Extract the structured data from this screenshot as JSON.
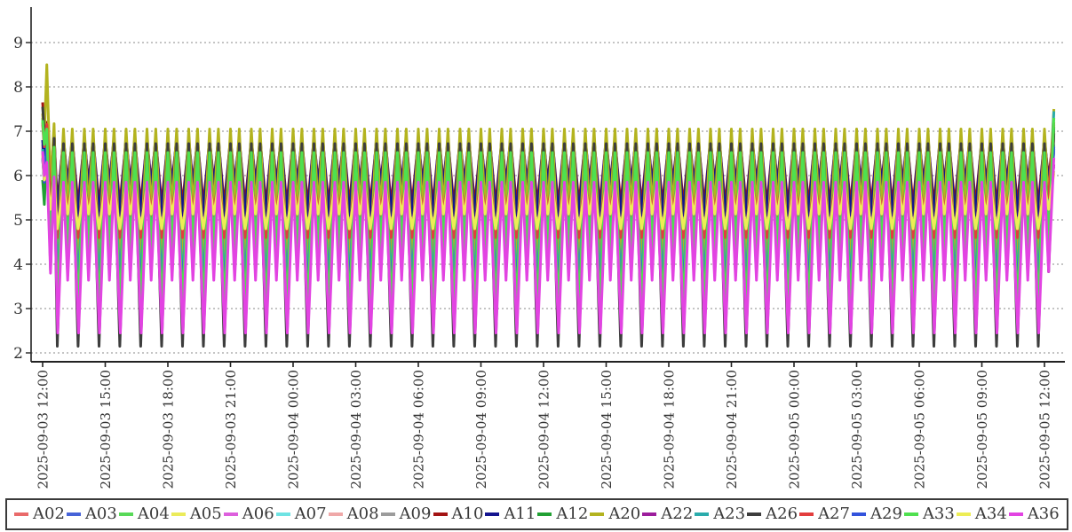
{
  "chart_data": {
    "type": "line",
    "title": "",
    "xlabel": "",
    "ylabel": "",
    "grid": "horizontal-dashed",
    "legend_position": "bottom",
    "y_axis": {
      "min": 2,
      "max": 9,
      "ticks": [
        2,
        3,
        4,
        5,
        6,
        7,
        8,
        9
      ]
    },
    "x_axis": {
      "tick_hours": [
        0,
        3,
        6,
        9,
        12,
        15,
        18,
        21,
        24,
        27,
        30,
        33,
        36,
        39,
        42,
        45,
        48
      ],
      "tick_labels": [
        "2025-09-03 12:00",
        "2025-09-03 15:00",
        "2025-09-03 18:00",
        "2025-09-03 21:00",
        "2025-09-04 00:00",
        "2025-09-04 03:00",
        "2025-09-04 06:00",
        "2025-09-04 09:00",
        "2025-09-04 12:00",
        "2025-09-04 15:00",
        "2025-09-04 18:00",
        "2025-09-04 21:00",
        "2025-09-05 00:00",
        "2025-09-05 03:00",
        "2025-09-05 06:00",
        "2025-09-05 09:00",
        "2025-09-05 12:00"
      ]
    },
    "waveform": {
      "description": "all series repeat an hourly M-shaped cycle: deep trough, peak, shallow notch, peak, deep trough",
      "period_hours": 1,
      "first_trough_hour": 0.7,
      "peak_dt": 0.3,
      "mid_dt": 0.5,
      "peak2_dt": 0.72,
      "mid_w": 0.35,
      "pre": {
        "dip_t": 0.08,
        "dip_drop": 0.55,
        "spike_t": 0.2,
        "mid_t": 0.38,
        "peak2_t": 0.55,
        "peak2_lift": 0.12
      },
      "end": {
        "trough_t": 47.7,
        "peak_t": 48.0,
        "mid_t": 48.2,
        "end_t": 48.45
      }
    },
    "series": [
      {
        "name": "A02",
        "color": "#e96a6a",
        "min": 4.55,
        "max": 5.95,
        "start": 7.15,
        "spike": 7.1,
        "end": 6.55,
        "phase_offset": 0
      },
      {
        "name": "A03",
        "color": "#4663d8",
        "min": 3.4,
        "max": 6.1,
        "start": 6.45,
        "spike": 6.55,
        "end": 6.6,
        "phase_offset": 0
      },
      {
        "name": "A04",
        "color": "#58d958",
        "min": 2.95,
        "max": 6.45,
        "start": 7.3,
        "spike": 7.0,
        "end": 7.15,
        "phase_offset": 0
      },
      {
        "name": "A05",
        "color": "#ebeb5a",
        "min": 4.85,
        "max": 5.7,
        "start": 6.5,
        "spike": 6.1,
        "end": 6.1,
        "phase_offset": 0
      },
      {
        "name": "A06",
        "color": "#dd5fdd",
        "min": 4.95,
        "max": 5.8,
        "start": 6.55,
        "spike": 6.2,
        "end": 6.2,
        "phase_offset": 0
      },
      {
        "name": "A07",
        "color": "#6fe3e3",
        "min": 3.7,
        "max": 6.18,
        "start": 6.6,
        "spike": 6.6,
        "end": 6.7,
        "phase_offset": 0
      },
      {
        "name": "A08",
        "color": "#efa8a8",
        "min": 5.05,
        "max": 6.6,
        "start": 6.65,
        "spike": 6.8,
        "end": 6.85,
        "phase_offset": 0
      },
      {
        "name": "A09",
        "color": "#9c9c9c",
        "min": 5.2,
        "max": 6.68,
        "start": 6.7,
        "spike": 6.9,
        "end": 6.9,
        "phase_offset": 0
      },
      {
        "name": "A10",
        "color": "#a31313",
        "min": 5.35,
        "max": 6.8,
        "start": 7.65,
        "spike": 7.2,
        "end": 7.0,
        "phase_offset": 0
      },
      {
        "name": "A11",
        "color": "#14148f",
        "min": 5.1,
        "max": 6.88,
        "start": 6.8,
        "spike": 7.0,
        "end": 7.05,
        "phase_offset": 0
      },
      {
        "name": "A12",
        "color": "#21a033",
        "min": 2.9,
        "max": 6.35,
        "start": 5.9,
        "spike": 6.6,
        "end": 7.1,
        "phase_offset": 0
      },
      {
        "name": "A20",
        "color": "#b3b31f",
        "min": 4.2,
        "max": 7.05,
        "start": 7.4,
        "spike": 8.5,
        "end": 7.5,
        "phase_offset": 0
      },
      {
        "name": "A22",
        "color": "#9c1d9c",
        "min": 4.75,
        "max": 5.88,
        "start": 6.4,
        "spike": 6.25,
        "end": 6.25,
        "phase_offset": -0.02
      },
      {
        "name": "A23",
        "color": "#2aabab",
        "min": 3.6,
        "max": 6.25,
        "start": 6.6,
        "spike": 6.65,
        "end": 7.45,
        "phase_offset": 0
      },
      {
        "name": "A26",
        "color": "#3d3d3d",
        "min": 2.15,
        "max": 6.72,
        "start": 7.55,
        "spike": 7.05,
        "end": 6.95,
        "phase_offset": 0
      },
      {
        "name": "A27",
        "color": "#e33d3d",
        "min": 4.6,
        "max": 6.02,
        "start": 7.2,
        "spike": 7.15,
        "end": 7.2,
        "phase_offset": 0
      },
      {
        "name": "A29",
        "color": "#3353dc",
        "min": 3.35,
        "max": 6.15,
        "start": 6.4,
        "spike": 6.6,
        "end": 6.65,
        "phase_offset": 0
      },
      {
        "name": "A33",
        "color": "#4fe04f",
        "min": 3.0,
        "max": 6.52,
        "start": 7.25,
        "spike": 7.05,
        "end": 7.3,
        "phase_offset": 0
      },
      {
        "name": "A34",
        "color": "#eded55",
        "min": 4.8,
        "max": 5.75,
        "start": 6.45,
        "spike": 6.05,
        "end": 6.05,
        "phase_offset": 0
      },
      {
        "name": "A36",
        "color": "#e243e2",
        "min": 2.45,
        "max": 5.85,
        "start": 6.55,
        "spike": 6.3,
        "end": 6.4,
        "phase_offset": 0.025
      }
    ],
    "style": {
      "axis_color": "#222222",
      "grid_color": "#888888",
      "tick_label_color": "#333333",
      "legend_border_color": "#3a3a3a",
      "background": "#ffffff"
    }
  }
}
